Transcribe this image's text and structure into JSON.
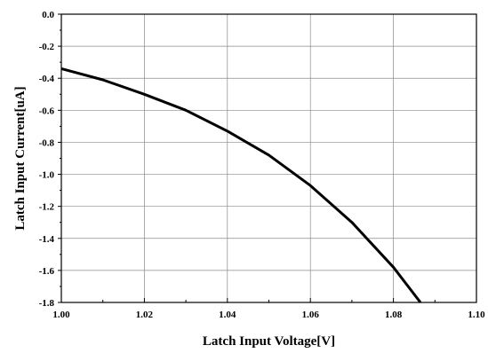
{
  "chart_data": {
    "type": "line",
    "title": "",
    "xlabel": "Latch Input Voltage[V]",
    "ylabel": "Latch Input Current[uA]",
    "xlim": [
      1.0,
      1.1
    ],
    "ylim": [
      -1.8,
      0.0
    ],
    "grid": true,
    "legend": "none",
    "x_ticks": [
      1.0,
      1.02,
      1.04,
      1.06,
      1.08,
      1.1
    ],
    "x_tick_labels": [
      "1.00",
      "1.02",
      "1.04",
      "1.06",
      "1.08",
      "1.10"
    ],
    "y_ticks": [
      0.0,
      -0.2,
      -0.4,
      -0.6,
      -0.8,
      -1.0,
      -1.2,
      -1.4,
      -1.6,
      -1.8
    ],
    "y_tick_labels": [
      "0.0",
      "-0.2",
      "-0.4",
      "-0.6",
      "-0.8",
      "-1.0",
      "-1.2",
      "-1.4",
      "-1.6",
      "-1.8"
    ],
    "series": [
      {
        "x": [
          1.0,
          1.01,
          1.02,
          1.03,
          1.04,
          1.05,
          1.06,
          1.07,
          1.08,
          1.0865
        ],
        "y": [
          -0.34,
          -0.41,
          -0.5,
          -0.6,
          -0.73,
          -0.88,
          -1.07,
          -1.3,
          -1.58,
          -1.8
        ],
        "color": "#000000"
      }
    ]
  }
}
